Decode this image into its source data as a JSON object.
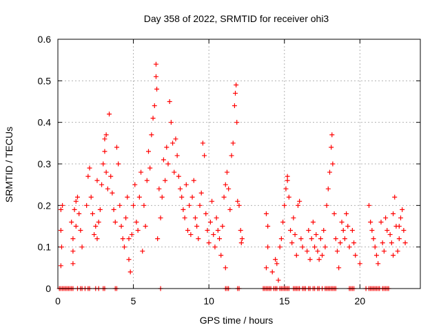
{
  "chart_data": {
    "type": "scatter",
    "title": "Day 358 of 2022, SRMTID for receiver ohi3",
    "xlabel": "GPS time / hours",
    "ylabel": "SRMTID / TECUs",
    "xlim": [
      0,
      24
    ],
    "ylim": [
      0,
      0.6
    ],
    "xticks": [
      0,
      5,
      10,
      15,
      20
    ],
    "xtick_labels": [
      "0",
      "5",
      "10",
      "15",
      "20"
    ],
    "yticks": [
      0,
      0.1,
      0.2,
      0.3,
      0.4,
      0.5,
      0.6
    ],
    "ytick_labels": [
      "0",
      "0.1",
      "0.2",
      "0.3",
      "0.4",
      "0.5",
      "0.6"
    ],
    "grid": true,
    "marker": "+",
    "marker_color": "#ff0000",
    "series": [
      {
        "name": "SRMTID",
        "points": [
          [
            0.1,
            0.0
          ],
          [
            0.2,
            0.0
          ],
          [
            0.3,
            0.0
          ],
          [
            0.4,
            0.0
          ],
          [
            0.5,
            0.0
          ],
          [
            0.6,
            0.0
          ],
          [
            0.7,
            0.0
          ],
          [
            0.8,
            0.0
          ],
          [
            0.9,
            0.0
          ],
          [
            1.0,
            0.0
          ],
          [
            1.3,
            0.0
          ],
          [
            1.5,
            0.0
          ],
          [
            1.6,
            0.0
          ],
          [
            1.8,
            0.0
          ],
          [
            2.0,
            0.0
          ],
          [
            2.1,
            0.0
          ],
          [
            2.5,
            0.0
          ],
          [
            2.7,
            0.0
          ],
          [
            3.0,
            0.0
          ],
          [
            3.1,
            0.0
          ],
          [
            3.8,
            0.0
          ],
          [
            3.9,
            0.0
          ],
          [
            6.8,
            0.0
          ],
          [
            11.1,
            0.0
          ],
          [
            11.2,
            0.0
          ],
          [
            11.3,
            0.0
          ],
          [
            11.9,
            0.0
          ],
          [
            12.0,
            0.0
          ],
          [
            13.6,
            0.0
          ],
          [
            13.7,
            0.0
          ],
          [
            13.8,
            0.0
          ],
          [
            13.9,
            0.0
          ],
          [
            14.0,
            0.0
          ],
          [
            14.1,
            0.0
          ],
          [
            14.3,
            0.0
          ],
          [
            14.4,
            0.0
          ],
          [
            14.5,
            0.0
          ],
          [
            14.7,
            0.0
          ],
          [
            14.8,
            0.0
          ],
          [
            14.9,
            0.0
          ],
          [
            15.0,
            0.0
          ],
          [
            15.1,
            0.0
          ],
          [
            15.2,
            0.0
          ],
          [
            15.3,
            0.0
          ],
          [
            15.6,
            0.0
          ],
          [
            15.7,
            0.0
          ],
          [
            15.8,
            0.0
          ],
          [
            15.9,
            0.0
          ],
          [
            16.0,
            0.0
          ],
          [
            16.2,
            0.0
          ],
          [
            16.3,
            0.0
          ],
          [
            16.4,
            0.0
          ],
          [
            16.6,
            0.0
          ],
          [
            16.7,
            0.0
          ],
          [
            16.9,
            0.0
          ],
          [
            17.0,
            0.0
          ],
          [
            17.2,
            0.0
          ],
          [
            17.3,
            0.0
          ],
          [
            17.5,
            0.0
          ],
          [
            17.7,
            0.0
          ],
          [
            17.8,
            0.0
          ],
          [
            17.9,
            0.0
          ],
          [
            18.0,
            0.0
          ],
          [
            18.1,
            0.0
          ],
          [
            18.2,
            0.0
          ],
          [
            18.3,
            0.0
          ],
          [
            18.4,
            0.0
          ],
          [
            19.3,
            0.0
          ],
          [
            19.4,
            0.0
          ],
          [
            19.5,
            0.0
          ],
          [
            19.6,
            0.0
          ],
          [
            20.4,
            0.0
          ],
          [
            20.6,
            0.0
          ],
          [
            20.7,
            0.0
          ],
          [
            20.8,
            0.0
          ],
          [
            20.9,
            0.0
          ],
          [
            21.0,
            0.0
          ],
          [
            21.1,
            0.0
          ],
          [
            21.2,
            0.0
          ],
          [
            21.3,
            0.0
          ],
          [
            21.5,
            0.0
          ],
          [
            21.6,
            0.0
          ],
          [
            21.7,
            0.0
          ],
          [
            21.8,
            0.0
          ],
          [
            21.9,
            0.0
          ],
          [
            0.2,
            0.19
          ],
          [
            0.2,
            0.14
          ],
          [
            0.25,
            0.1
          ],
          [
            0.2,
            0.055
          ],
          [
            0.3,
            0.2
          ],
          [
            0.9,
            0.16
          ],
          [
            1.0,
            0.12
          ],
          [
            1.0,
            0.09
          ],
          [
            1.0,
            0.06
          ],
          [
            1.1,
            0.19
          ],
          [
            1.2,
            0.15
          ],
          [
            1.2,
            0.21
          ],
          [
            1.3,
            0.22
          ],
          [
            1.4,
            0.18
          ],
          [
            1.5,
            0.14
          ],
          [
            1.6,
            0.1
          ],
          [
            1.9,
            0.2
          ],
          [
            2.0,
            0.27
          ],
          [
            2.1,
            0.29
          ],
          [
            2.2,
            0.22
          ],
          [
            2.3,
            0.18
          ],
          [
            2.4,
            0.13
          ],
          [
            2.5,
            0.15
          ],
          [
            2.6,
            0.26
          ],
          [
            2.6,
            0.12
          ],
          [
            2.7,
            0.16
          ],
          [
            2.8,
            0.19
          ],
          [
            2.9,
            0.25
          ],
          [
            3.0,
            0.3
          ],
          [
            3.1,
            0.33
          ],
          [
            3.1,
            0.36
          ],
          [
            3.2,
            0.37
          ],
          [
            3.2,
            0.28
          ],
          [
            3.3,
            0.24
          ],
          [
            3.4,
            0.42
          ],
          [
            3.5,
            0.27
          ],
          [
            3.6,
            0.23
          ],
          [
            3.7,
            0.19
          ],
          [
            3.8,
            0.16
          ],
          [
            3.9,
            0.34
          ],
          [
            4.0,
            0.3
          ],
          [
            4.1,
            0.2
          ],
          [
            4.2,
            0.15
          ],
          [
            4.3,
            0.12
          ],
          [
            4.4,
            0.1
          ],
          [
            4.5,
            0.17
          ],
          [
            4.6,
            0.22
          ],
          [
            4.7,
            0.07
          ],
          [
            4.7,
            0.12
          ],
          [
            4.8,
            0.04
          ],
          [
            4.9,
            0.13
          ],
          [
            5.0,
            0.2
          ],
          [
            5.1,
            0.25
          ],
          [
            5.2,
            0.16
          ],
          [
            5.3,
            0.14
          ],
          [
            5.4,
            0.22
          ],
          [
            5.5,
            0.28
          ],
          [
            5.6,
            0.09
          ],
          [
            5.7,
            0.2
          ],
          [
            5.8,
            0.15
          ],
          [
            5.9,
            0.26
          ],
          [
            6.0,
            0.33
          ],
          [
            6.1,
            0.29
          ],
          [
            6.2,
            0.37
          ],
          [
            6.3,
            0.41
          ],
          [
            6.4,
            0.44
          ],
          [
            6.5,
            0.54
          ],
          [
            6.5,
            0.51
          ],
          [
            6.55,
            0.48
          ],
          [
            6.6,
            0.12
          ],
          [
            6.7,
            0.24
          ],
          [
            6.8,
            0.17
          ],
          [
            6.9,
            0.22
          ],
          [
            7.0,
            0.31
          ],
          [
            7.1,
            0.26
          ],
          [
            7.2,
            0.34
          ],
          [
            7.3,
            0.3
          ],
          [
            7.4,
            0.45
          ],
          [
            7.5,
            0.4
          ],
          [
            7.6,
            0.35
          ],
          [
            7.7,
            0.28
          ],
          [
            7.8,
            0.36
          ],
          [
            7.9,
            0.32
          ],
          [
            8.0,
            0.27
          ],
          [
            8.1,
            0.24
          ],
          [
            8.2,
            0.22
          ],
          [
            8.3,
            0.19
          ],
          [
            8.4,
            0.17
          ],
          [
            8.5,
            0.25
          ],
          [
            8.6,
            0.14
          ],
          [
            8.7,
            0.2
          ],
          [
            8.8,
            0.13
          ],
          [
            8.9,
            0.22
          ],
          [
            9.0,
            0.26
          ],
          [
            9.1,
            0.17
          ],
          [
            9.2,
            0.15
          ],
          [
            9.3,
            0.12
          ],
          [
            9.4,
            0.2
          ],
          [
            9.5,
            0.23
          ],
          [
            9.6,
            0.35
          ],
          [
            9.7,
            0.32
          ],
          [
            9.8,
            0.18
          ],
          [
            9.9,
            0.14
          ],
          [
            10.0,
            0.11
          ],
          [
            10.1,
            0.16
          ],
          [
            10.2,
            0.21
          ],
          [
            10.3,
            0.13
          ],
          [
            10.4,
            0.1
          ],
          [
            10.5,
            0.17
          ],
          [
            10.6,
            0.14
          ],
          [
            10.7,
            0.12
          ],
          [
            10.8,
            0.08
          ],
          [
            10.9,
            0.15
          ],
          [
            11.0,
            0.22
          ],
          [
            11.1,
            0.25
          ],
          [
            11.2,
            0.28
          ],
          [
            11.3,
            0.24
          ],
          [
            11.4,
            0.19
          ],
          [
            11.5,
            0.32
          ],
          [
            11.6,
            0.35
          ],
          [
            11.7,
            0.44
          ],
          [
            11.75,
            0.47
          ],
          [
            11.8,
            0.49
          ],
          [
            11.85,
            0.4
          ],
          [
            11.9,
            0.21
          ],
          [
            12.0,
            0.2
          ],
          [
            12.1,
            0.14
          ],
          [
            12.15,
            0.11
          ],
          [
            12.2,
            0.12
          ],
          [
            11.1,
            0.05
          ],
          [
            13.8,
            0.18
          ],
          [
            13.9,
            0.15
          ],
          [
            13.9,
            0.1
          ],
          [
            13.8,
            0.05
          ],
          [
            14.2,
            0.04
          ],
          [
            14.4,
            0.07
          ],
          [
            14.5,
            0.06
          ],
          [
            14.6,
            0.02
          ],
          [
            14.7,
            0.1
          ],
          [
            14.8,
            0.12
          ],
          [
            14.9,
            0.16
          ],
          [
            15.0,
            0.2
          ],
          [
            15.1,
            0.24
          ],
          [
            15.2,
            0.26
          ],
          [
            15.2,
            0.27
          ],
          [
            15.3,
            0.22
          ],
          [
            15.4,
            0.14
          ],
          [
            15.5,
            0.11
          ],
          [
            15.6,
            0.17
          ],
          [
            15.7,
            0.13
          ],
          [
            15.8,
            0.08
          ],
          [
            15.9,
            0.2
          ],
          [
            16.0,
            0.21
          ],
          [
            16.1,
            0.12
          ],
          [
            16.2,
            0.1
          ],
          [
            16.5,
            0.09
          ],
          [
            16.6,
            0.14
          ],
          [
            16.7,
            0.07
          ],
          [
            16.8,
            0.12
          ],
          [
            16.9,
            0.16
          ],
          [
            17.0,
            0.1
          ],
          [
            17.1,
            0.13
          ],
          [
            17.2,
            0.09
          ],
          [
            17.3,
            0.07
          ],
          [
            17.4,
            0.12
          ],
          [
            17.5,
            0.08
          ],
          [
            17.6,
            0.14
          ],
          [
            17.7,
            0.1
          ],
          [
            17.8,
            0.2
          ],
          [
            17.9,
            0.24
          ],
          [
            18.0,
            0.28
          ],
          [
            18.1,
            0.34
          ],
          [
            18.15,
            0.37
          ],
          [
            18.2,
            0.3
          ],
          [
            18.3,
            0.18
          ],
          [
            18.4,
            0.12
          ],
          [
            18.5,
            0.09
          ],
          [
            18.6,
            0.05
          ],
          [
            18.7,
            0.11
          ],
          [
            18.8,
            0.16
          ],
          [
            18.9,
            0.14
          ],
          [
            19.0,
            0.12
          ],
          [
            19.1,
            0.18
          ],
          [
            19.2,
            0.15
          ],
          [
            19.3,
            0.1
          ],
          [
            19.5,
            0.14
          ],
          [
            19.6,
            0.11
          ],
          [
            19.7,
            0.08
          ],
          [
            20.0,
            0.06
          ],
          [
            20.6,
            0.2
          ],
          [
            20.7,
            0.16
          ],
          [
            20.8,
            0.14
          ],
          [
            20.9,
            0.12
          ],
          [
            21.0,
            0.1
          ],
          [
            21.1,
            0.08
          ],
          [
            21.2,
            0.06
          ],
          [
            21.4,
            0.16
          ],
          [
            21.5,
            0.11
          ],
          [
            21.6,
            0.09
          ],
          [
            21.7,
            0.17
          ],
          [
            21.8,
            0.14
          ],
          [
            22.0,
            0.13
          ],
          [
            22.1,
            0.11
          ],
          [
            22.2,
            0.18
          ],
          [
            22.3,
            0.22
          ],
          [
            22.4,
            0.15
          ],
          [
            22.5,
            0.09
          ],
          [
            22.6,
            0.12
          ],
          [
            22.7,
            0.17
          ],
          [
            22.8,
            0.19
          ],
          [
            22.9,
            0.14
          ],
          [
            23.0,
            0.11
          ],
          [
            22.2,
            0.08
          ],
          [
            22.6,
            0.15
          ]
        ]
      }
    ]
  }
}
